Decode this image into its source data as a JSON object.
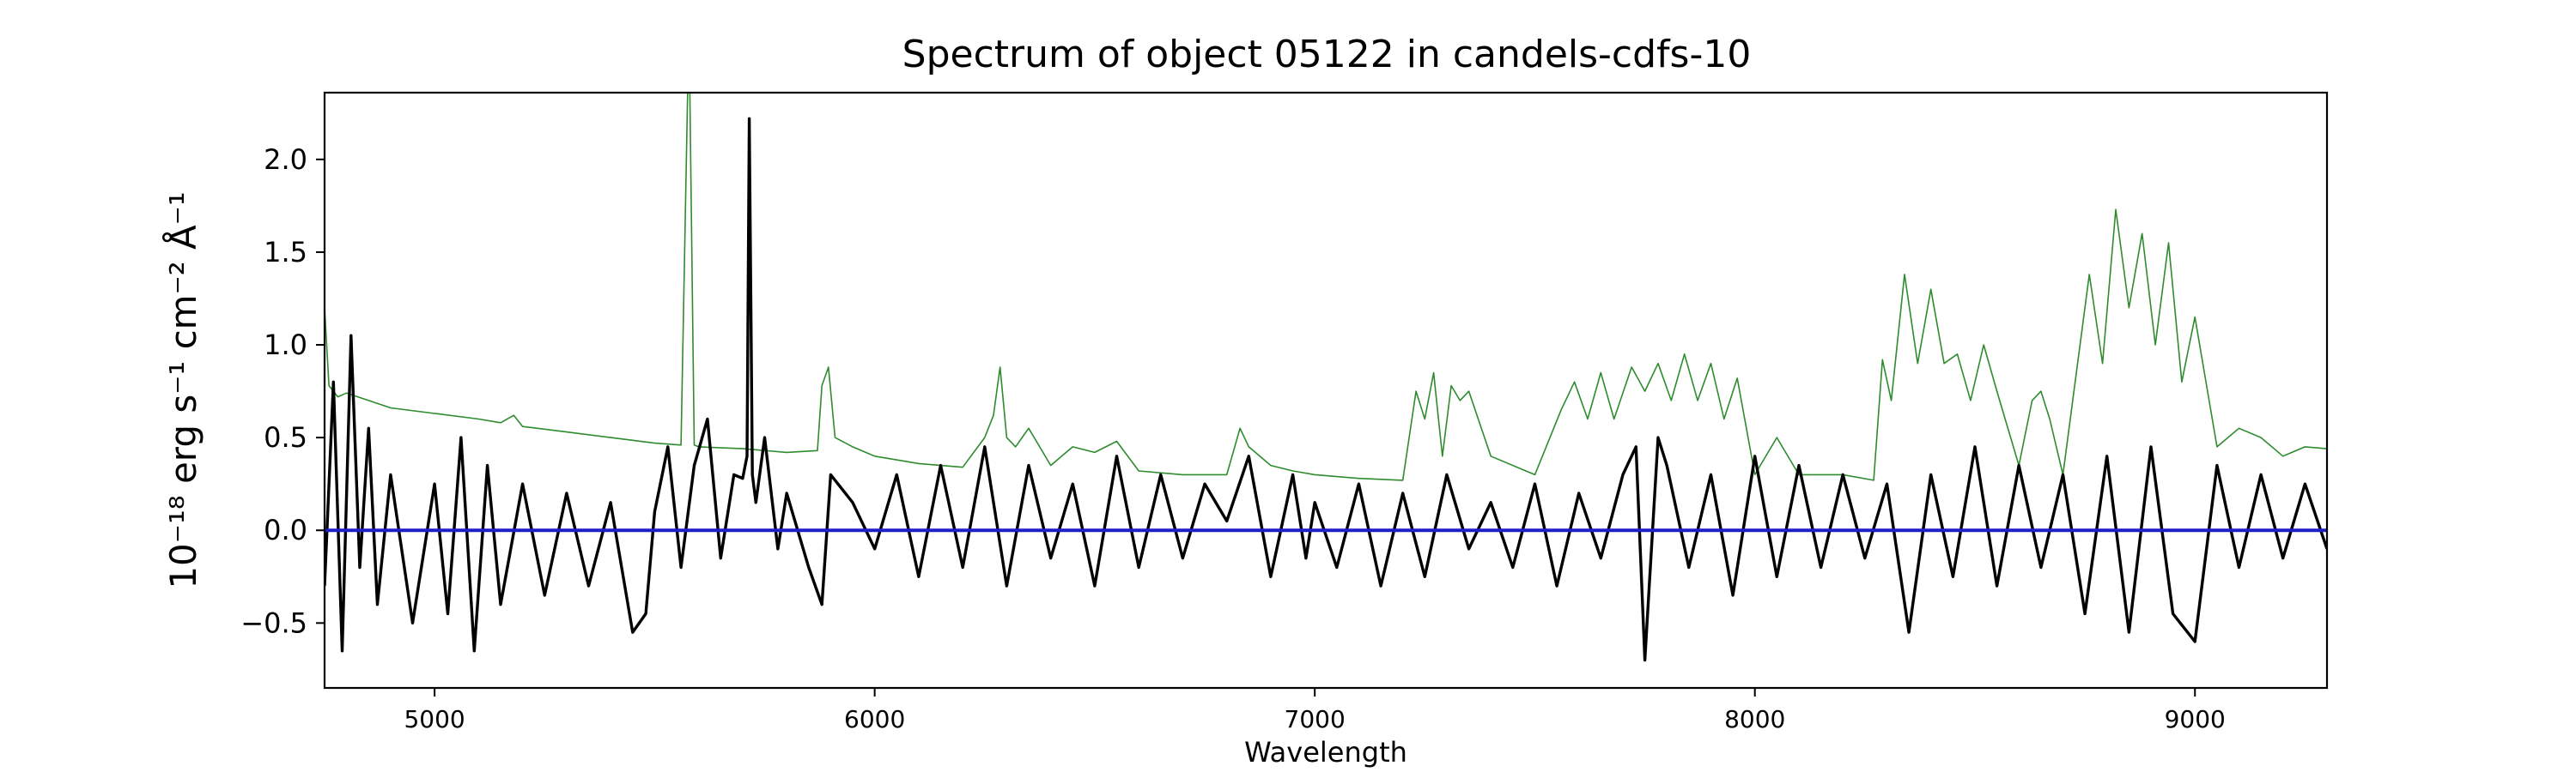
{
  "chart_data": {
    "type": "line",
    "title": "Spectrum of object 05122 in candels-cdfs-10",
    "xlabel": "Wavelength",
    "ylabel": "10⁻¹⁸ erg s⁻¹ cm⁻² Å⁻¹",
    "xlim": [
      4750,
      9300
    ],
    "ylim": [
      -0.85,
      2.36
    ],
    "x_ticks": [
      5000,
      6000,
      7000,
      8000,
      9000
    ],
    "y_ticks": [
      -0.5,
      0.0,
      0.5,
      1.0,
      1.5,
      2.0
    ],
    "x_tick_labels": [
      "5000",
      "6000",
      "7000",
      "8000",
      "9000"
    ],
    "y_tick_labels": [
      "−0.5",
      "0.0",
      "0.5",
      "1.0",
      "1.5",
      "2.0"
    ],
    "grid": false,
    "series": [
      {
        "role": "noise",
        "color": "#2e8b2e",
        "x": [
          4750,
          4760,
          4780,
          4800,
          4850,
          4900,
          5000,
          5100,
          5150,
          5180,
          5200,
          5300,
          5400,
          5500,
          5560,
          5575,
          5580,
          5590,
          5600,
          5700,
          5800,
          5870,
          5880,
          5895,
          5910,
          5950,
          6000,
          6100,
          6200,
          6250,
          6270,
          6285,
          6300,
          6320,
          6350,
          6400,
          6450,
          6500,
          6550,
          6600,
          6700,
          6800,
          6830,
          6850,
          6900,
          6950,
          7000,
          7100,
          7200,
          7230,
          7250,
          7270,
          7290,
          7310,
          7330,
          7350,
          7400,
          7500,
          7560,
          7590,
          7620,
          7650,
          7680,
          7720,
          7750,
          7780,
          7810,
          7840,
          7870,
          7900,
          7930,
          7960,
          8000,
          8050,
          8100,
          8200,
          8270,
          8290,
          8310,
          8340,
          8370,
          8400,
          8430,
          8460,
          8490,
          8520,
          8550,
          8600,
          8630,
          8650,
          8670,
          8700,
          8760,
          8790,
          8820,
          8850,
          8880,
          8910,
          8940,
          8970,
          9000,
          9050,
          9100,
          9150,
          9200,
          9250,
          9300
        ],
        "values": [
          1.2,
          0.78,
          0.72,
          0.74,
          0.7,
          0.66,
          0.63,
          0.6,
          0.58,
          0.62,
          0.56,
          0.53,
          0.5,
          0.47,
          0.46,
          2.36,
          2.36,
          0.46,
          0.45,
          0.44,
          0.42,
          0.43,
          0.78,
          0.88,
          0.5,
          0.45,
          0.4,
          0.36,
          0.34,
          0.5,
          0.62,
          0.88,
          0.5,
          0.45,
          0.55,
          0.35,
          0.45,
          0.42,
          0.48,
          0.32,
          0.3,
          0.3,
          0.55,
          0.45,
          0.35,
          0.32,
          0.3,
          0.28,
          0.27,
          0.75,
          0.6,
          0.85,
          0.4,
          0.78,
          0.7,
          0.75,
          0.4,
          0.3,
          0.65,
          0.8,
          0.6,
          0.85,
          0.6,
          0.88,
          0.75,
          0.9,
          0.7,
          0.95,
          0.7,
          0.9,
          0.6,
          0.82,
          0.3,
          0.5,
          0.3,
          0.3,
          0.27,
          0.92,
          0.7,
          1.38,
          0.9,
          1.3,
          0.9,
          0.95,
          0.7,
          1.0,
          0.75,
          0.35,
          0.7,
          0.75,
          0.6,
          0.3,
          1.38,
          0.9,
          1.73,
          1.2,
          1.6,
          1.0,
          1.55,
          0.8,
          1.15,
          0.45,
          0.55,
          0.5,
          0.4,
          0.45,
          0.44
        ]
      },
      {
        "role": "flux",
        "color": "#000000",
        "x": [
          4750,
          4770,
          4790,
          4810,
          4830,
          4850,
          4870,
          4900,
          4950,
          5000,
          5030,
          5060,
          5090,
          5120,
          5150,
          5200,
          5250,
          5300,
          5350,
          5400,
          5450,
          5480,
          5500,
          5530,
          5560,
          5590,
          5620,
          5650,
          5680,
          5700,
          5710,
          5715,
          5722,
          5730,
          5750,
          5780,
          5800,
          5850,
          5880,
          5900,
          5950,
          6000,
          6050,
          6100,
          6150,
          6200,
          6250,
          6300,
          6350,
          6400,
          6450,
          6500,
          6550,
          6600,
          6650,
          6700,
          6750,
          6800,
          6850,
          6900,
          6950,
          6980,
          7000,
          7050,
          7100,
          7150,
          7200,
          7250,
          7300,
          7350,
          7400,
          7450,
          7500,
          7550,
          7600,
          7650,
          7700,
          7730,
          7750,
          7760,
          7780,
          7800,
          7850,
          7900,
          7950,
          8000,
          8050,
          8100,
          8150,
          8200,
          8250,
          8300,
          8350,
          8400,
          8450,
          8500,
          8550,
          8600,
          8650,
          8700,
          8750,
          8800,
          8850,
          8900,
          8950,
          9000,
          9050,
          9100,
          9150,
          9200,
          9250,
          9300
        ],
        "values": [
          -0.3,
          0.8,
          -0.65,
          1.05,
          -0.2,
          0.55,
          -0.4,
          0.3,
          -0.5,
          0.25,
          -0.45,
          0.5,
          -0.65,
          0.35,
          -0.4,
          0.25,
          -0.35,
          0.2,
          -0.3,
          0.15,
          -0.55,
          -0.45,
          0.1,
          0.45,
          -0.2,
          0.35,
          0.6,
          -0.15,
          0.3,
          0.28,
          0.4,
          2.22,
          0.3,
          0.15,
          0.5,
          -0.1,
          0.2,
          -0.2,
          -0.4,
          0.3,
          0.15,
          -0.1,
          0.3,
          -0.25,
          0.35,
          -0.2,
          0.45,
          -0.3,
          0.35,
          -0.15,
          0.25,
          -0.3,
          0.4,
          -0.2,
          0.3,
          -0.15,
          0.25,
          0.05,
          0.4,
          -0.25,
          0.3,
          -0.15,
          0.15,
          -0.2,
          0.25,
          -0.3,
          0.2,
          -0.25,
          0.3,
          -0.1,
          0.15,
          -0.2,
          0.25,
          -0.3,
          0.2,
          -0.15,
          0.3,
          0.45,
          -0.7,
          -0.3,
          0.5,
          0.35,
          -0.2,
          0.3,
          -0.35,
          0.4,
          -0.25,
          0.35,
          -0.2,
          0.3,
          -0.15,
          0.25,
          -0.55,
          0.3,
          -0.25,
          0.45,
          -0.3,
          0.35,
          -0.2,
          0.3,
          -0.45,
          0.4,
          -0.55,
          0.45,
          -0.45,
          -0.6,
          0.35,
          -0.2,
          0.3,
          -0.15,
          0.25,
          -0.1
        ]
      },
      {
        "role": "zero-level",
        "color": "#1f1fc8",
        "x": [
          4750,
          9300
        ],
        "values": [
          0.0,
          0.0
        ]
      }
    ]
  }
}
